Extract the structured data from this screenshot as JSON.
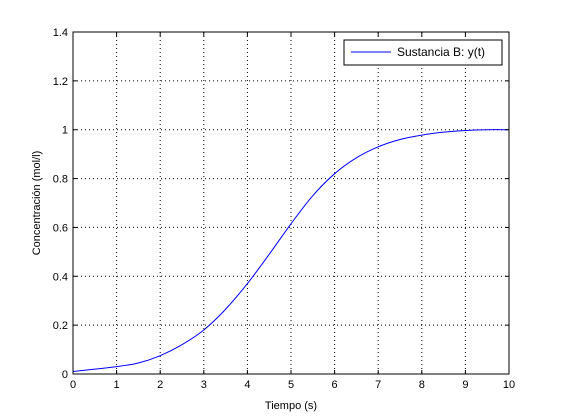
{
  "chart_data": {
    "type": "line",
    "xlabel": "Tiempo (s)",
    "ylabel": "Concentración (mol/l)",
    "xlim": [
      0,
      10
    ],
    "ylim": [
      0,
      1.4
    ],
    "x_ticks": [
      "0",
      "1",
      "2",
      "3",
      "4",
      "5",
      "6",
      "7",
      "8",
      "9",
      "10"
    ],
    "y_ticks": [
      "0",
      "0.2",
      "0.4",
      "0.6",
      "0.8",
      "1",
      "1.2",
      "1.4"
    ],
    "grid": true,
    "grid_style": "dotted",
    "legend_position": "top-right",
    "series": [
      {
        "name": "Sustancia B: y(t)",
        "color": "#0000ff",
        "x": [
          0,
          0.5,
          1,
          1.5,
          2,
          2.5,
          3,
          3.5,
          4,
          4.5,
          5,
          5.5,
          6,
          6.5,
          7,
          7.5,
          8,
          8.5,
          9,
          9.5,
          10
        ],
        "y": [
          0.01,
          0.02,
          0.03,
          0.045,
          0.075,
          0.12,
          0.18,
          0.265,
          0.37,
          0.49,
          0.615,
          0.73,
          0.82,
          0.885,
          0.93,
          0.96,
          0.978,
          0.99,
          0.997,
          1.0,
          1.0
        ]
      }
    ]
  }
}
